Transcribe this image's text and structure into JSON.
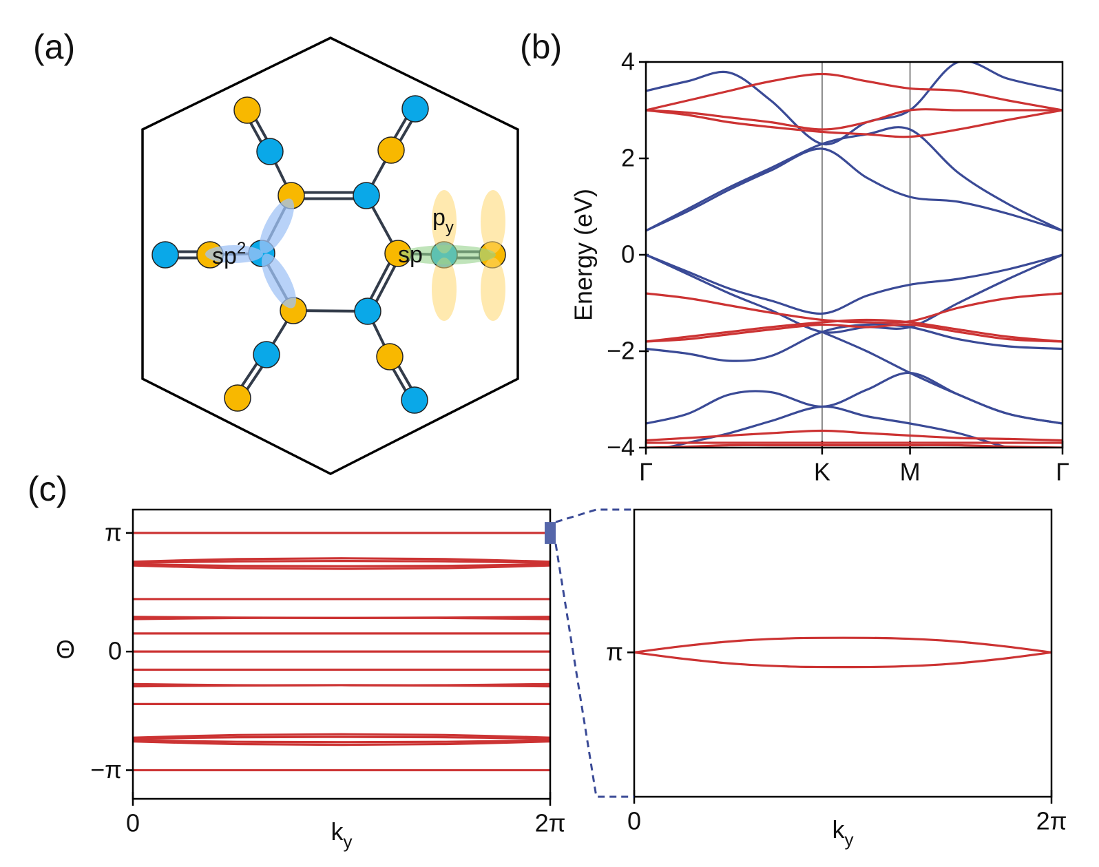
{
  "panels": [
    "(a)",
    "(b)",
    "(c)"
  ],
  "diagram": {
    "sp2": {
      "text": "sp",
      "sup": "2"
    },
    "py": {
      "text": "p",
      "sub": "y"
    },
    "sp": "sp"
  },
  "chart_data": [
    {
      "type": "line",
      "ylabel": "Energy (eV)",
      "x": [
        0,
        0.1,
        0.2,
        0.3,
        0.423,
        0.53,
        0.634,
        0.75,
        0.87,
        1
      ],
      "xlim": [
        0,
        1
      ],
      "xticks": [
        {
          "value": 0,
          "label": "Γ"
        },
        {
          "value": 0.423,
          "label": "K"
        },
        {
          "value": 0.634,
          "label": "M"
        },
        {
          "value": 1,
          "label": "Γ"
        }
      ],
      "ylim": [
        -4,
        4
      ],
      "yticks": [
        {
          "value": -4,
          "label": "−4"
        },
        {
          "value": -2,
          "label": "−2"
        },
        0,
        2,
        4
      ],
      "grid": true,
      "series": [
        {
          "color": "#3a4a96",
          "values": [
            3.4,
            3.6,
            3.78,
            3.2,
            2.3,
            2.75,
            3.0,
            4.0,
            3.65,
            3.4
          ]
        },
        {
          "color": "#3a4a96",
          "values": [
            0.5,
            0.95,
            1.4,
            1.8,
            2.3,
            2.5,
            2.6,
            1.7,
            1.05,
            0.5
          ]
        },
        {
          "color": "#3a4a96",
          "values": [
            0.5,
            0.9,
            1.35,
            1.75,
            2.2,
            1.6,
            1.2,
            1.1,
            0.85,
            0.5
          ]
        },
        {
          "color": "#3a4a96",
          "values": [
            0,
            -0.35,
            -0.7,
            -0.95,
            -1.22,
            -0.85,
            -0.62,
            -0.5,
            -0.3,
            0
          ]
        },
        {
          "color": "#3a4a96",
          "values": [
            0,
            -0.4,
            -0.8,
            -1.15,
            -1.6,
            -1.5,
            -1.5,
            -1.0,
            -0.5,
            0
          ]
        },
        {
          "color": "#3a4a96",
          "values": [
            -1.95,
            -2.05,
            -2.2,
            -2.1,
            -1.6,
            -1.45,
            -1.5,
            -1.75,
            -1.9,
            -1.95
          ]
        },
        {
          "color": "#3a4a96",
          "values": [
            -3.5,
            -3.3,
            -2.9,
            -2.85,
            -3.15,
            -2.8,
            -2.45,
            -2.9,
            -3.3,
            -3.5
          ]
        },
        {
          "color": "#3a4a96",
          "values": [
            -4.1,
            -3.9,
            -3.7,
            -3.45,
            -3.15,
            -3.35,
            -3.5,
            -3.7,
            -4.0,
            -4.2
          ]
        },
        {
          "color": "#3a4a96",
          "values": [
            null,
            null,
            null,
            null,
            -1.6,
            -2.0,
            -2.45,
            -2.9,
            -3.3,
            -3.5
          ]
        },
        {
          "color": "#cc3333",
          "values": [
            3.0,
            3.2,
            3.4,
            3.6,
            3.75,
            3.6,
            3.45,
            3.4,
            3.2,
            3.0
          ]
        },
        {
          "color": "#cc3333",
          "values": [
            3.0,
            2.95,
            2.85,
            2.75,
            2.6,
            2.75,
            3.0,
            3.0,
            3.0,
            3.0
          ]
        },
        {
          "color": "#cc3333",
          "values": [
            3.0,
            2.9,
            2.75,
            2.65,
            2.55,
            2.5,
            2.45,
            2.6,
            2.8,
            3.0
          ]
        },
        {
          "color": "#cc3333",
          "values": [
            -0.8,
            -0.9,
            -1.05,
            -1.2,
            -1.35,
            -1.4,
            -1.38,
            -1.1,
            -0.9,
            -0.8
          ]
        },
        {
          "color": "#cc3333",
          "values": [
            -1.8,
            -1.7,
            -1.6,
            -1.5,
            -1.4,
            -1.35,
            -1.4,
            -1.55,
            -1.7,
            -1.8
          ]
        },
        {
          "color": "#cc3333",
          "values": [
            -1.8,
            -1.75,
            -1.65,
            -1.55,
            -1.45,
            -1.5,
            -1.45,
            -1.6,
            -1.75,
            -1.8
          ]
        },
        {
          "color": "#cc3333",
          "values": [
            -3.85,
            -3.8,
            -3.75,
            -3.7,
            -3.65,
            -3.7,
            -3.75,
            -3.8,
            -3.82,
            -3.85
          ]
        },
        {
          "color": "#cc3333",
          "values": [
            -3.9,
            -3.9,
            -3.9,
            -3.9,
            -3.9,
            -3.9,
            -3.9,
            -3.9,
            -3.9,
            -3.9
          ]
        },
        {
          "color": "#cc3333",
          "values": [
            -4.0,
            -3.98,
            -3.95,
            -3.95,
            -3.95,
            -3.95,
            -3.95,
            -3.95,
            -3.98,
            -4.0
          ]
        }
      ]
    },
    {
      "type": "line",
      "ylabel": "Θ",
      "xlabel": {
        "text": "k",
        "sub": "y"
      },
      "color": "#cc3333",
      "x": [
        0,
        1.5708,
        3.1416,
        4.7124,
        6.2832
      ],
      "xlim": [
        0,
        6.2832
      ],
      "xticks": [
        0,
        {
          "value": 6.2832,
          "label": "2π"
        }
      ],
      "ylim": [
        -3.9,
        3.76
      ],
      "yticks": [
        {
          "value": 3.1416,
          "label": "π"
        },
        0,
        {
          "value": -3.1416,
          "label": "−π"
        }
      ],
      "series": [
        {
          "values": [
            3.1416,
            3.1416,
            3.1416,
            3.1416,
            3.1416
          ]
        },
        {
          "values": [
            2.38,
            2.45,
            2.47,
            2.45,
            2.38
          ]
        },
        {
          "values": [
            2.35,
            2.39,
            2.4,
            2.39,
            2.35
          ]
        },
        {
          "values": [
            2.31,
            2.27,
            2.26,
            2.27,
            2.31
          ]
        },
        {
          "values": [
            2.28,
            2.21,
            2.19,
            2.21,
            2.28
          ]
        },
        {
          "values": [
            1.39,
            1.39,
            1.39,
            1.39,
            1.39
          ]
        },
        {
          "values": [
            0.92,
            0.9,
            0.89,
            0.9,
            0.92
          ]
        },
        {
          "values": [
            0.86,
            0.89,
            0.89,
            0.89,
            0.86
          ]
        },
        {
          "values": [
            0.48,
            0.48,
            0.48,
            0.48,
            0.48
          ]
        },
        {
          "values": [
            0,
            0,
            0,
            0,
            0
          ]
        },
        {
          "values": [
            -0.48,
            -0.48,
            -0.48,
            -0.48,
            -0.48
          ]
        },
        {
          "values": [
            -0.86,
            -0.89,
            -0.89,
            -0.89,
            -0.86
          ]
        },
        {
          "values": [
            -0.92,
            -0.9,
            -0.89,
            -0.9,
            -0.92
          ]
        },
        {
          "values": [
            -1.39,
            -1.39,
            -1.39,
            -1.39,
            -1.39
          ]
        },
        {
          "values": [
            -2.28,
            -2.21,
            -2.19,
            -2.21,
            -2.28
          ]
        },
        {
          "values": [
            -2.31,
            -2.27,
            -2.26,
            -2.27,
            -2.31
          ]
        },
        {
          "values": [
            -2.35,
            -2.39,
            -2.4,
            -2.39,
            -2.35
          ]
        },
        {
          "values": [
            -2.38,
            -2.45,
            -2.47,
            -2.45,
            -2.38
          ]
        },
        {
          "values": [
            -3.1416,
            -3.1416,
            -3.1416,
            -3.1416,
            -3.1416
          ]
        }
      ]
    },
    {
      "type": "line",
      "xlabel": {
        "text": "k",
        "sub": "y"
      },
      "color": "#cc3333",
      "x": [
        0,
        0.7854,
        1.5708,
        2.3562,
        3.1416,
        3.927,
        4.7124,
        5.4978,
        6.2832
      ],
      "xlim": [
        0,
        6.2832
      ],
      "xticks": [
        0,
        {
          "value": 6.2832,
          "label": "2π"
        }
      ],
      "ylim": [
        2.85,
        3.43
      ],
      "yticks": [
        {
          "value": 3.1416,
          "label": "π"
        }
      ],
      "series": [
        {
          "values": [
            3.1416,
            3.155,
            3.165,
            3.17,
            3.171,
            3.17,
            3.165,
            3.155,
            3.1416
          ]
        },
        {
          "values": [
            3.1416,
            3.128,
            3.118,
            3.113,
            3.112,
            3.113,
            3.118,
            3.128,
            3.1416
          ]
        }
      ]
    }
  ]
}
